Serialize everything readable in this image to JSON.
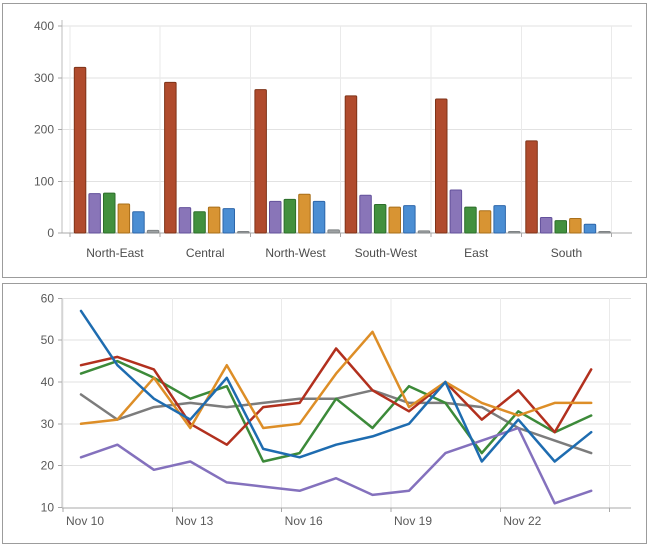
{
  "chart_data": [
    {
      "type": "bar",
      "title": "",
      "categories": [
        "North-East",
        "Central",
        "North-West",
        "South-West",
        "East",
        "South"
      ],
      "series": [
        {
          "name": "rust",
          "color": "#b04b2d",
          "border": "#7e3318",
          "values": [
            320,
            291,
            277,
            265,
            259,
            178
          ]
        },
        {
          "name": "purple",
          "color": "#8975b8",
          "border": "#63519b",
          "values": [
            76,
            49,
            61,
            73,
            83,
            30
          ]
        },
        {
          "name": "green",
          "color": "#42903e",
          "border": "#2c6e2a",
          "values": [
            77,
            41,
            65,
            55,
            50,
            24
          ]
        },
        {
          "name": "orange",
          "color": "#d89433",
          "border": "#a96f1a",
          "values": [
            56,
            50,
            75,
            50,
            43,
            28
          ]
        },
        {
          "name": "blue",
          "color": "#4b8ed3",
          "border": "#2d66a9",
          "values": [
            41,
            47,
            61,
            53,
            53,
            17
          ]
        },
        {
          "name": "gray",
          "color": "#9da1a3",
          "border": "#7f8385",
          "values": [
            5,
            3,
            6,
            4,
            3,
            2
          ]
        }
      ],
      "ylim": [
        0,
        400
      ],
      "yticks": [
        0,
        100,
        200,
        300,
        400
      ],
      "grid": true,
      "legend": "none"
    },
    {
      "type": "line",
      "title": "",
      "x": [
        "Nov 10",
        "Nov 11",
        "Nov 12",
        "Nov 13",
        "Nov 14",
        "Nov 15",
        "Nov 16",
        "Nov 17",
        "Nov 18",
        "Nov 19",
        "Nov 20",
        "Nov 21",
        "Nov 22",
        "Nov 23",
        "Nov 24"
      ],
      "x_tick_labels": [
        "Nov 10",
        "Nov 13",
        "Nov 16",
        "Nov 19",
        "Nov 22"
      ],
      "series": [
        {
          "name": "gray",
          "color": "#7c7c7c",
          "values": [
            37,
            31,
            34,
            35,
            34,
            35,
            36,
            36,
            38,
            35,
            35,
            34,
            29,
            26,
            23
          ]
        },
        {
          "name": "green",
          "color": "#3c8a39",
          "values": [
            42,
            45,
            41,
            36,
            39,
            21,
            23,
            36,
            29,
            39,
            35,
            23,
            33,
            28,
            32
          ]
        },
        {
          "name": "red",
          "color": "#b2301e",
          "values": [
            44,
            46,
            43,
            30,
            25,
            34,
            35,
            48,
            38,
            33,
            40,
            31,
            38,
            28,
            43
          ]
        },
        {
          "name": "orange",
          "color": "#dd8e27",
          "values": [
            30,
            31,
            41,
            29,
            44,
            29,
            30,
            42,
            52,
            34,
            40,
            35,
            32,
            35,
            35
          ]
        },
        {
          "name": "purple",
          "color": "#8471bd",
          "values": [
            22,
            25,
            19,
            21,
            16,
            15,
            14,
            17,
            13,
            14,
            23,
            26,
            29,
            11,
            14
          ]
        },
        {
          "name": "blue",
          "color": "#1e6cb0",
          "values": [
            57,
            44,
            36,
            31,
            41,
            24,
            22,
            25,
            27,
            30,
            40,
            21,
            31,
            21,
            28
          ]
        }
      ],
      "ylim": [
        10,
        60
      ],
      "yticks": [
        10,
        20,
        30,
        40,
        50,
        60
      ],
      "grid": true,
      "legend": "none"
    }
  ],
  "theme": {
    "grid_h": "#e2e2e2",
    "grid_v": "#eaeaea",
    "axis_line": "#a8a8a8",
    "y_axis_line": "#bdbdbd",
    "tick": "#a8a8a8"
  }
}
